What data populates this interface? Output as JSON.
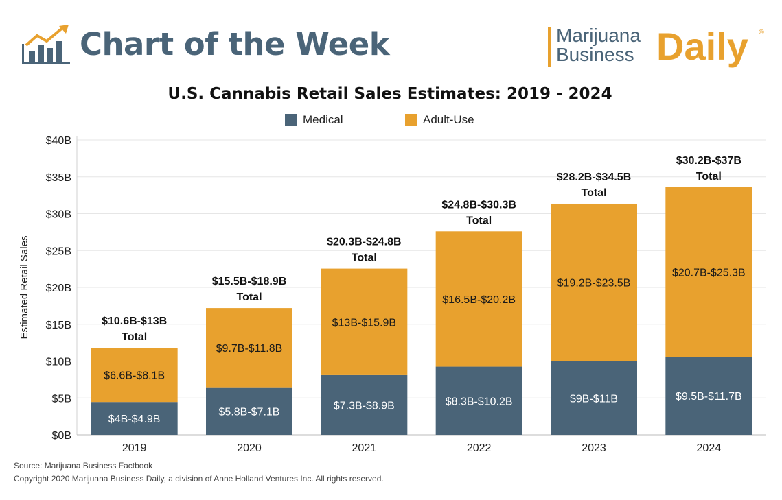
{
  "header": {
    "title": "Chart of the Week",
    "logo_line1": "Marijuana",
    "logo_line2": "Business",
    "logo_daily": "Daily",
    "logo_reg": "®"
  },
  "colors": {
    "medical": "#4a6478",
    "adult_use": "#e8a12e",
    "grid": "#e6e6e6"
  },
  "chart_data": {
    "type": "bar",
    "stacked": true,
    "title": "U.S. Cannabis Retail Sales Estimates: 2019 - 2024",
    "ylabel": "Estimated Retail Sales",
    "xlabel": "",
    "ylim": [
      0,
      40
    ],
    "yticks": [
      "$0B",
      "$5B",
      "$10B",
      "$15B",
      "$20B",
      "$25B",
      "$30B",
      "$35B",
      "$40B"
    ],
    "legend_position": "top-center",
    "categories": [
      "2019",
      "2020",
      "2021",
      "2022",
      "2023",
      "2024"
    ],
    "series": [
      {
        "name": "Medical",
        "values": [
          4.45,
          6.45,
          8.1,
          9.25,
          10.0,
          10.6
        ],
        "labels": [
          "$4B-$4.9B",
          "$5.8B-$7.1B",
          "$7.3B-$8.9B",
          "$8.3B-$10.2B",
          "$9B-$11B",
          "$9.5B-$11.7B"
        ]
      },
      {
        "name": "Adult-Use",
        "values": [
          7.35,
          10.75,
          14.45,
          18.35,
          21.35,
          23.0
        ],
        "labels": [
          "$6.6B-$8.1B",
          "$9.7B-$11.8B",
          "$13B-$15.9B",
          "$16.5B-$20.2B",
          "$19.2B-$23.5B",
          "$20.7B-$25.3B"
        ]
      }
    ],
    "totals": [
      "$10.6B-$13B",
      "$15.5B-$18.9B",
      "$20.3B-$24.8B",
      "$24.8B-$30.3B",
      "$28.2B-$34.5B",
      "$30.2B-$37B"
    ],
    "total_word": "Total"
  },
  "footer": {
    "source": "Source: Marijuana Business Factbook",
    "copyright": "Copyright 2020 Marijuana Business Daily, a division of Anne Holland Ventures Inc. All rights reserved."
  }
}
